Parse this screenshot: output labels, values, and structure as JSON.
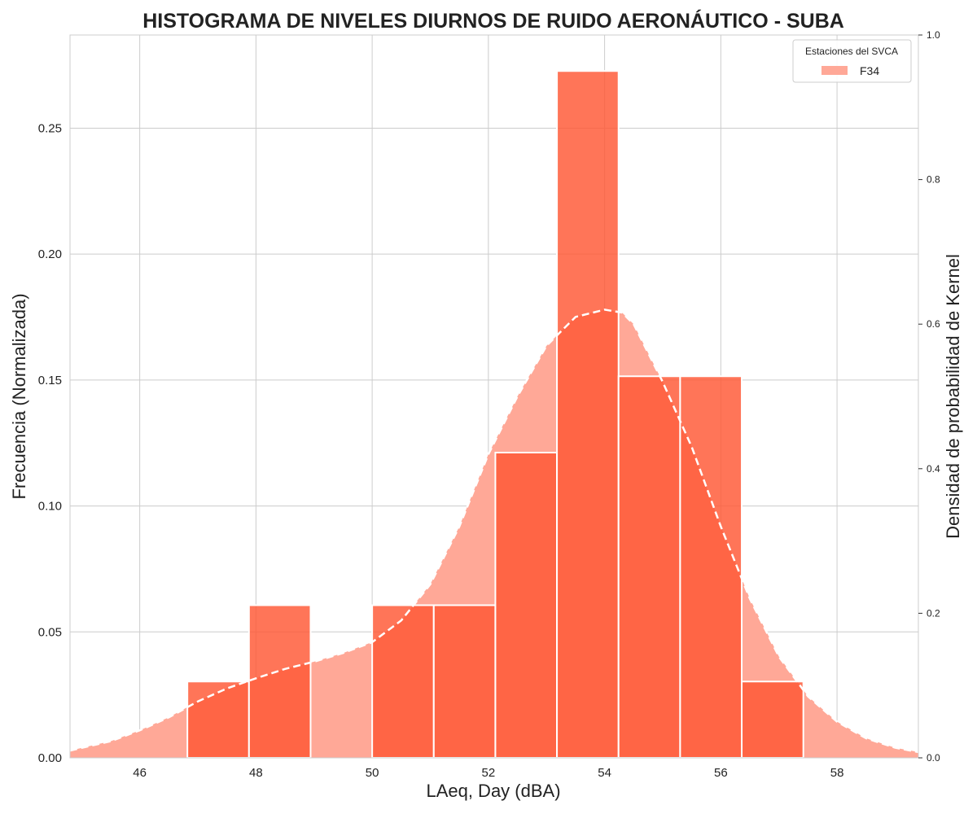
{
  "chart_data": {
    "type": "bar",
    "title": "HISTOGRAMA DE NIVELES DIURNOS DE RUIDO AERONÁUTICO - SUBA",
    "xlabel": "LAeq, Day (dBA)",
    "ylabel": "Frecuencia (Normalizada)",
    "ylabel_right": "Densidad de probabilidad de Kernel",
    "xlim": [
      44.8,
      59.4
    ],
    "ylim": [
      0,
      0.287
    ],
    "ylim_right": [
      0,
      1.0
    ],
    "x_ticks": [
      46,
      48,
      50,
      52,
      54,
      56,
      58
    ],
    "y_ticks": [
      0.0,
      0.05,
      0.1,
      0.15,
      0.2,
      0.25
    ],
    "y_ticks_right": [
      0.0,
      0.2,
      0.4,
      0.6,
      0.8,
      1.0
    ],
    "grid": true,
    "legend": {
      "title": "Estaciones del SVCA",
      "position": "top-right",
      "entries": [
        "F34"
      ]
    },
    "colors": {
      "bars": "#ff5733",
      "kde_fill": "#ffa897",
      "kde_line": "#ffffff"
    },
    "series": [
      {
        "name": "F34",
        "kind": "histogram",
        "bins": [
          {
            "x0": 46.82,
            "x1": 47.88,
            "value": 0.0303
          },
          {
            "x0": 47.88,
            "x1": 48.94,
            "value": 0.0606
          },
          {
            "x0": 48.94,
            "x1": 50.0,
            "value": 0.0
          },
          {
            "x0": 50.0,
            "x1": 51.06,
            "value": 0.0606
          },
          {
            "x0": 51.06,
            "x1": 52.12,
            "value": 0.0606
          },
          {
            "x0": 52.12,
            "x1": 53.18,
            "value": 0.1212
          },
          {
            "x0": 53.18,
            "x1": 54.24,
            "value": 0.2727
          },
          {
            "x0": 54.24,
            "x1": 55.3,
            "value": 0.1515
          },
          {
            "x0": 55.3,
            "x1": 56.36,
            "value": 0.1515
          },
          {
            "x0": 56.36,
            "x1": 57.42,
            "value": 0.0303
          }
        ]
      },
      {
        "name": "F34",
        "kind": "kde",
        "x": [
          44.8,
          45.5,
          46.0,
          46.5,
          47.0,
          47.5,
          48.0,
          48.5,
          49.0,
          49.5,
          50.0,
          50.5,
          51.0,
          51.5,
          52.0,
          52.5,
          53.0,
          53.5,
          54.0,
          54.3,
          54.5,
          55.0,
          55.5,
          56.0,
          56.5,
          57.0,
          57.5,
          58.0,
          58.5,
          59.0,
          59.4
        ],
        "y": [
          0.01,
          0.023,
          0.038,
          0.056,
          0.078,
          0.096,
          0.11,
          0.123,
          0.133,
          0.145,
          0.16,
          0.19,
          0.24,
          0.32,
          0.42,
          0.5,
          0.57,
          0.61,
          0.62,
          0.616,
          0.6,
          0.52,
          0.43,
          0.32,
          0.22,
          0.14,
          0.085,
          0.05,
          0.027,
          0.014,
          0.008
        ]
      }
    ]
  }
}
